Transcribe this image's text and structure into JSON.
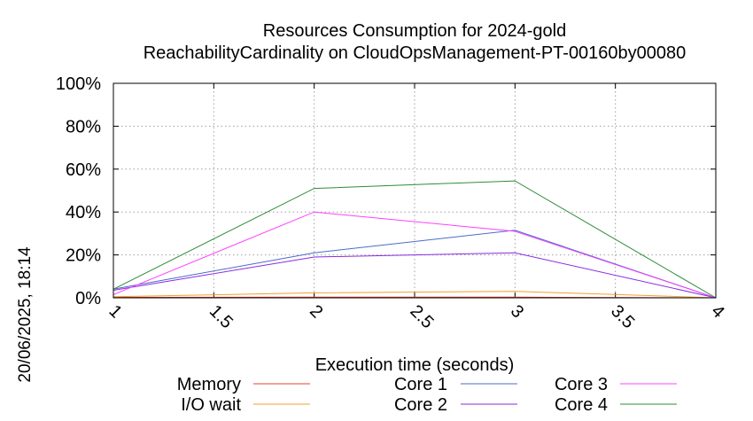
{
  "chart_data": {
    "type": "line",
    "title": "Resources Consumption for 2024-gold",
    "subtitle": "ReachabilityCardinality on CloudOpsManagement-PT-00160by00080",
    "xlabel": "Execution time (seconds)",
    "ylabel": "",
    "side_label": "20/06/2025, 18:14",
    "xlim": [
      1,
      4
    ],
    "ylim": [
      0,
      100
    ],
    "x_ticks": [
      "1",
      "1.5",
      "2",
      "2.5",
      "3",
      "3.5",
      "4"
    ],
    "y_ticks": [
      "0%",
      "20%",
      "40%",
      "60%",
      "80%",
      "100%"
    ],
    "grid": true,
    "legend_position": "bottom",
    "x": [
      1,
      2,
      3,
      4
    ],
    "series": [
      {
        "name": "Memory",
        "color": "#e8402c",
        "values": [
          0.2,
          0.3,
          0.3,
          0
        ]
      },
      {
        "name": "I/O wait",
        "color": "#f0a030",
        "values": [
          0.5,
          2.3,
          3.0,
          0
        ]
      },
      {
        "name": "Core 1",
        "color": "#4a6cc8",
        "values": [
          4,
          21,
          31.5,
          0
        ]
      },
      {
        "name": "Core 2",
        "color": "#8a2be2",
        "values": [
          3.5,
          19,
          21,
          0
        ]
      },
      {
        "name": "Core 3",
        "color": "#ff40ff",
        "values": [
          1.5,
          40,
          31,
          0
        ]
      },
      {
        "name": "Core 4",
        "color": "#2e8b3a",
        "values": [
          4,
          51,
          54.5,
          0
        ]
      }
    ]
  }
}
